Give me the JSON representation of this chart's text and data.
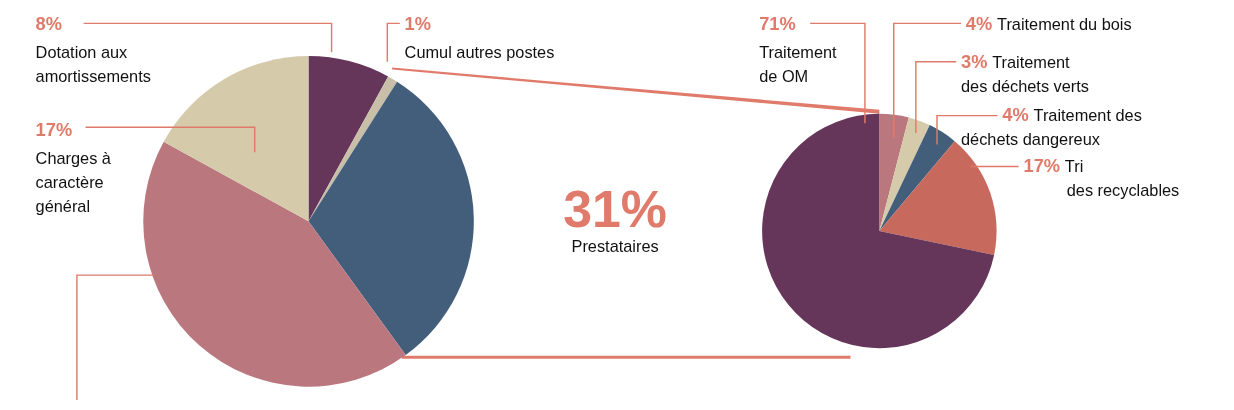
{
  "chart_data": [
    {
      "type": "pie",
      "categories": [
        "Dotation aux\namortissements",
        "Cumul autres postes",
        "Prestataires",
        null,
        "Charges à\ncaractère\ngénéral"
      ],
      "values": [
        8,
        1,
        31,
        43,
        17
      ],
      "value_labels": [
        "8%",
        "1%",
        "31%",
        null,
        "17%"
      ],
      "colors": [
        "#65355a",
        "#c9bfa8",
        "#425e7b",
        "#bb777e",
        "#d5cbab"
      ]
    },
    {
      "type": "pie",
      "categories": [
        "Traitement du bois",
        "Traitement\ndes déchets verts",
        "Traitement des\ndéchets dangereux",
        "Tri\ndes recyclables",
        "Traitement\nde OM"
      ],
      "values": [
        4,
        3,
        4,
        17,
        71
      ],
      "value_labels": [
        "4%",
        "3%",
        "4%",
        "17%",
        "71%"
      ],
      "colors": [
        "#bb777e",
        "#d5cbab",
        "#425e7b",
        "#c8695d",
        "#65355a"
      ]
    }
  ]
}
